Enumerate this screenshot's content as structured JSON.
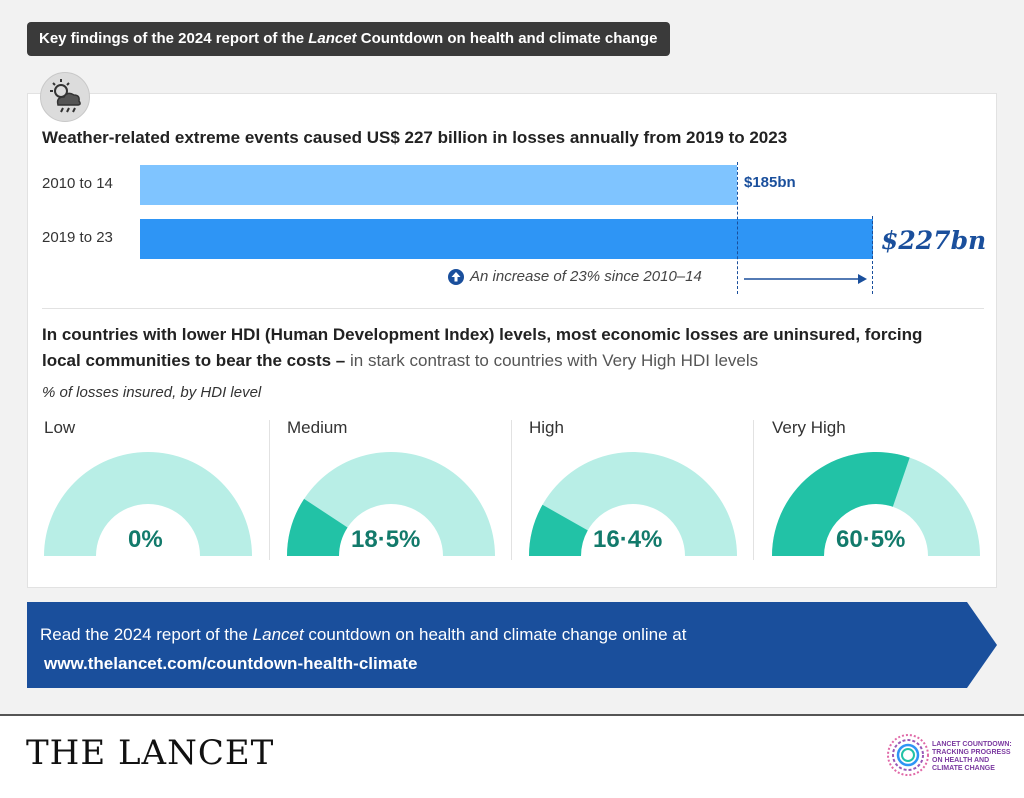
{
  "banner": {
    "text_before": "Key findings of the 2024 report of the ",
    "text_italic": "Lancet",
    "text_after": " Countdown on health and climate change"
  },
  "icons": {
    "weather": "cloud-sun-rain-icon",
    "increase": "arrow-up-circle-icon"
  },
  "section1": {
    "headline": "Weather-related extreme events caused US$ 227 billion in losses annually from 2019 to 2023",
    "increase_note": "An increase of 23% since 2010–14"
  },
  "section2": {
    "headline_bold": "In countries with lower HDI (Human Development Index) levels, most economic losses are uninsured, forcing local communities to bear the costs – ",
    "headline_light": "in stark contrast to countries with Very High HDI levels",
    "subhead": "% of losses insured, by HDI level"
  },
  "cta": {
    "text_before": "Read the 2024 report of the ",
    "text_italic": "Lancet",
    "text_after": " countdown on health and climate change online at",
    "url": "www.thelancet.com/countdown-health-climate"
  },
  "footer": {
    "logo": "THE LANCET",
    "countdown_logo_lines": [
      "LANCET COUNTDOWN:",
      "TRACKING PROGRESS",
      "ON HEALTH AND",
      "CLIMATE CHANGE"
    ]
  },
  "colors": {
    "bar_light": "#7fc4ff",
    "bar_dark": "#2e95f5",
    "value_text": "#1a4f9c",
    "gauge_bg": "#b8eee6",
    "gauge_fill": "#22c2a6",
    "gauge_text": "#127a6b",
    "cta_bg": "#1a4f9c"
  },
  "chart_data": [
    {
      "type": "bar",
      "orientation": "horizontal",
      "categories": [
        "2010 to 14",
        "2019 to 23"
      ],
      "values": [
        185,
        227
      ],
      "value_labels": [
        "$185bn",
        "$227bn"
      ],
      "xlim": [
        0,
        227
      ]
    },
    {
      "type": "pie",
      "style": "half-donut gauge",
      "categories": [
        "Low",
        "Medium",
        "High",
        "Very High"
      ],
      "values": [
        0,
        18.5,
        16.4,
        60.5
      ],
      "value_labels": [
        "0%",
        "18·5%",
        "16·4%",
        "60·5%"
      ],
      "max": 100
    }
  ]
}
